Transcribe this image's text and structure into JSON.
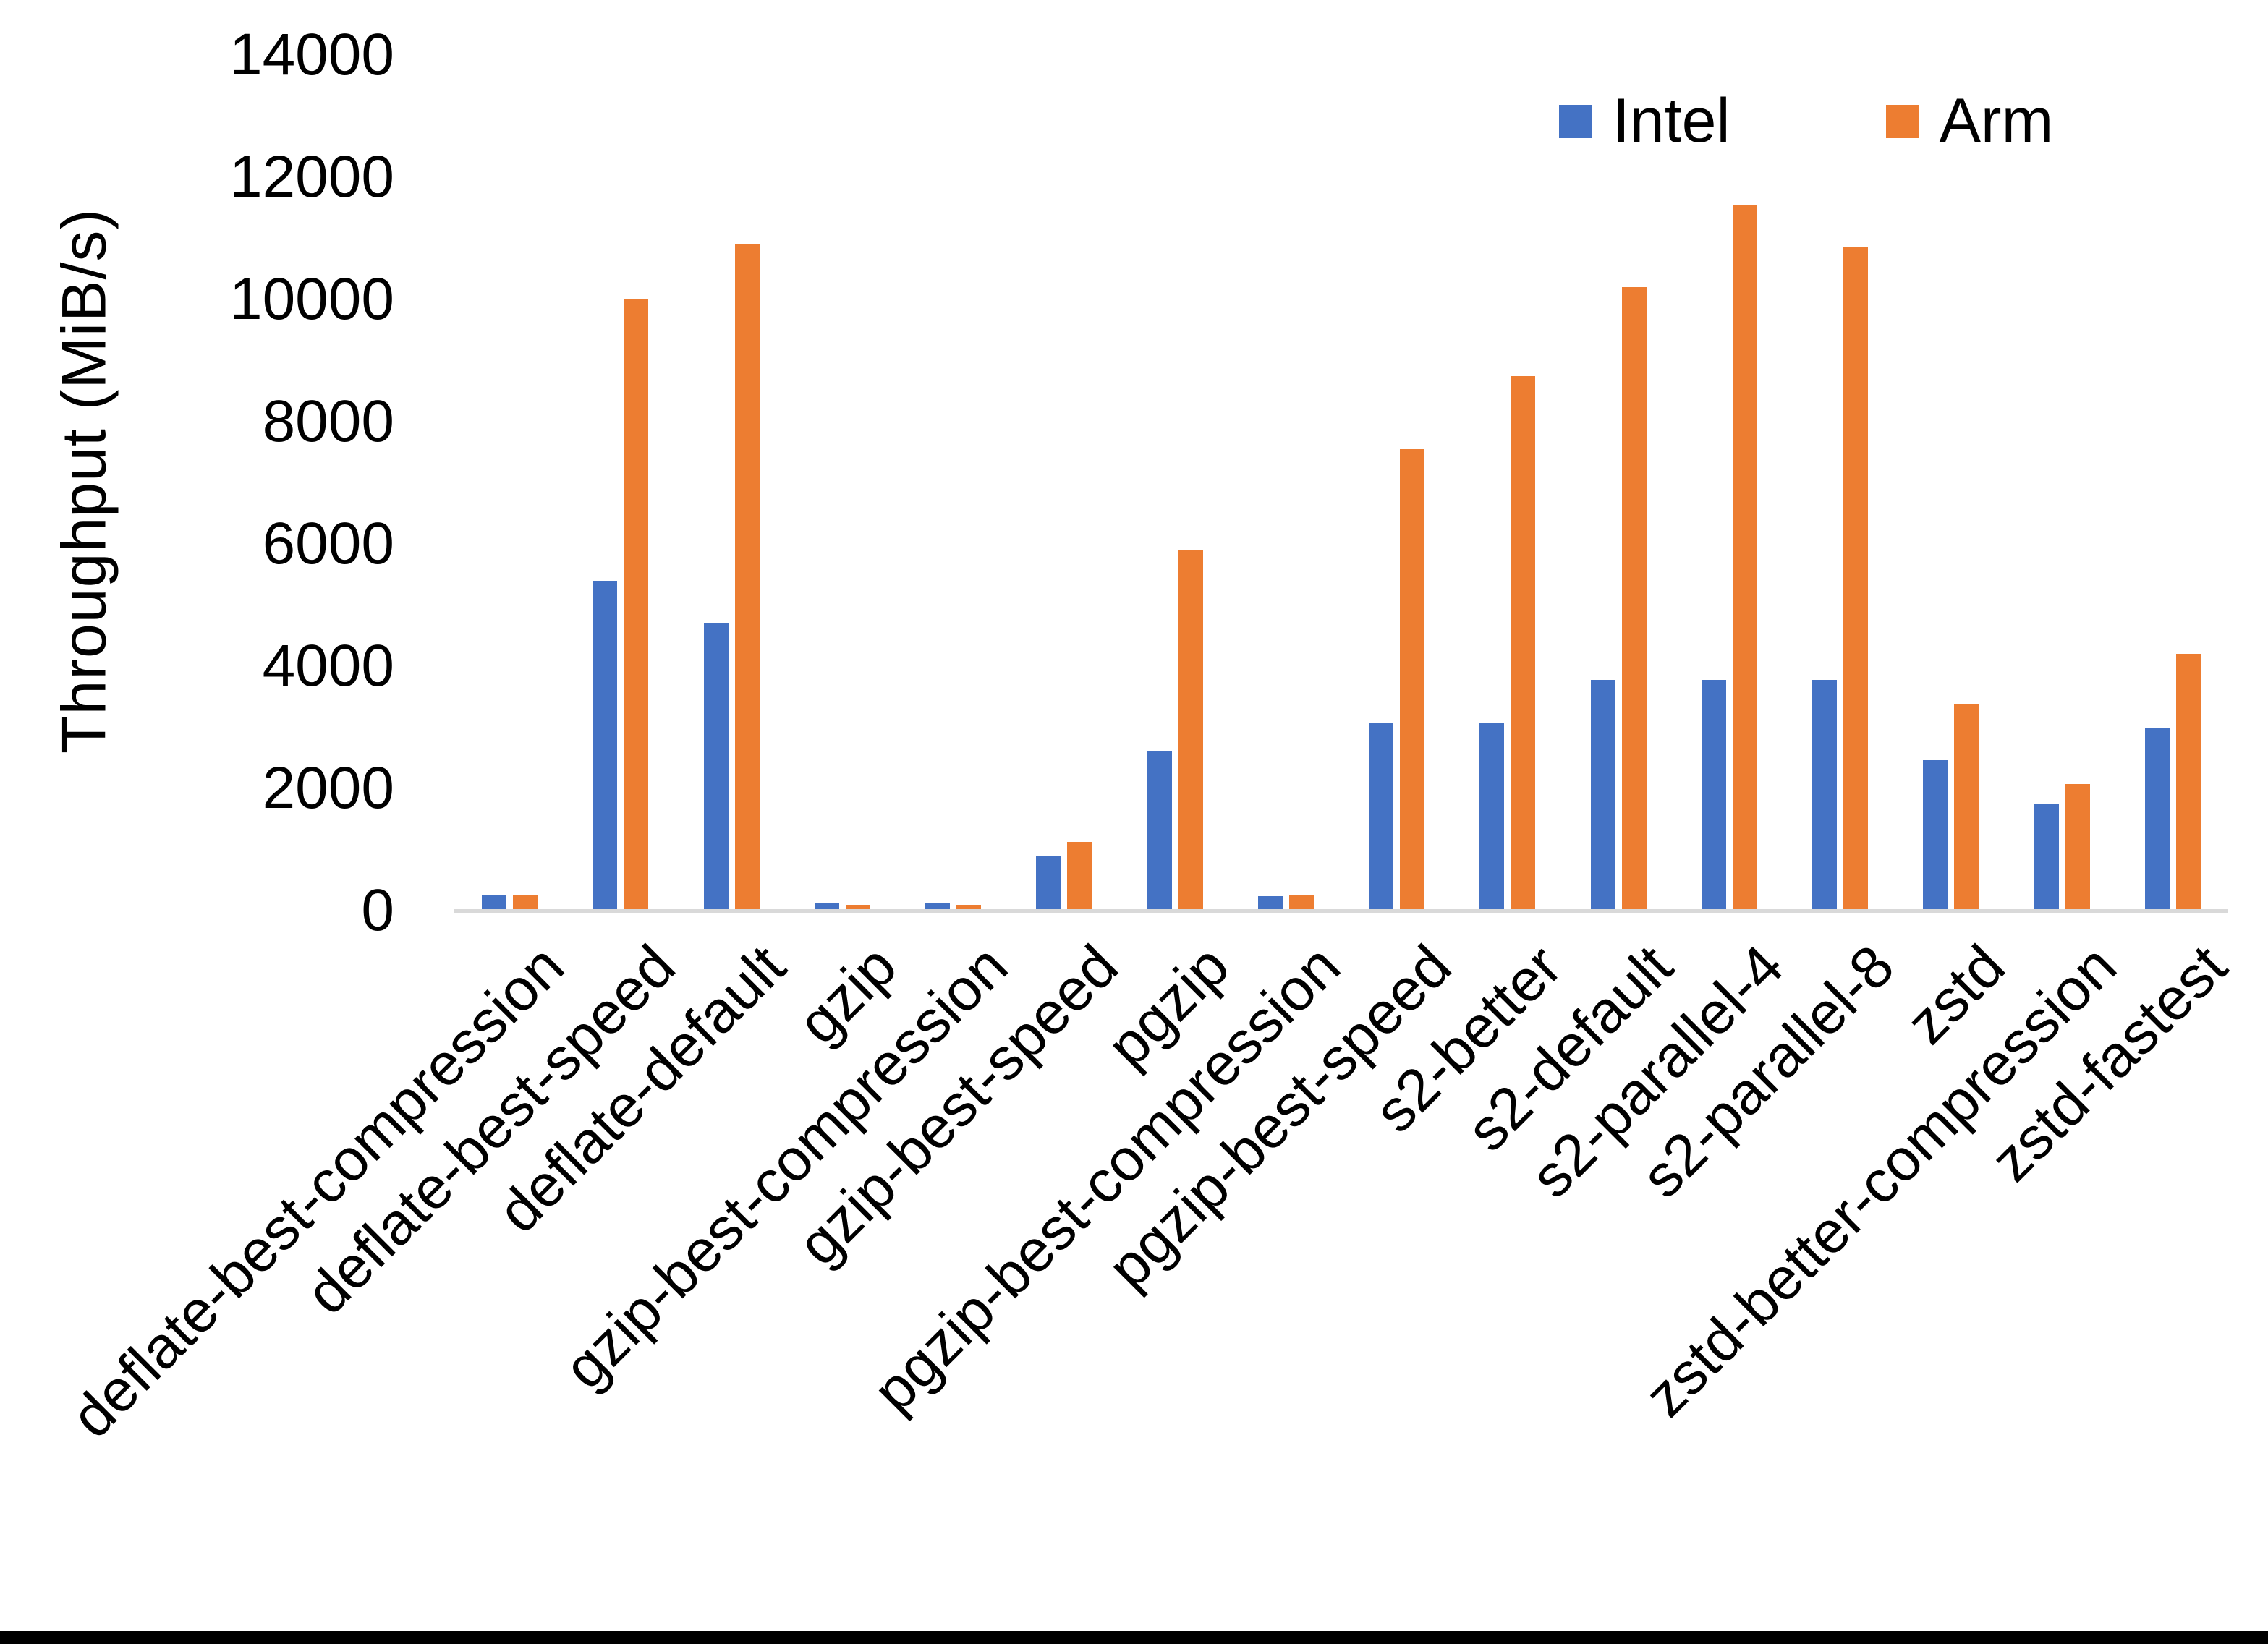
{
  "chart_data": {
    "type": "bar",
    "title": "",
    "xlabel": "",
    "ylabel": "Throughput (MiB/s)",
    "ylim": [
      0,
      14000
    ],
    "yticks": [
      0,
      2000,
      4000,
      6000,
      8000,
      10000,
      12000,
      14000
    ],
    "grid": false,
    "legend_position": "top-right",
    "categories": [
      "deflate-best-compression",
      "deflate-best-speed",
      "deflate-default",
      "gzip",
      "gzip-best-compression",
      "gzip-best-speed",
      "pgzip",
      "pgzip-best-compression",
      "pgzip-best-speed",
      "s2-better",
      "s2-default",
      "s2-parallel-4",
      "s2-parallel-8",
      "zstd",
      "zstd-better-compression",
      "zstd-fastest"
    ],
    "series": [
      {
        "name": "Intel",
        "color": "#4472C4",
        "values": [
          250,
          5400,
          4700,
          130,
          130,
          900,
          2600,
          240,
          3060,
          3060,
          3770,
          3770,
          3770,
          2460,
          1750,
          2990
        ]
      },
      {
        "name": "Arm",
        "color": "#ED7D31",
        "values": [
          245,
          10000,
          10900,
          100,
          100,
          1130,
          5900,
          250,
          7550,
          8750,
          10200,
          11550,
          10850,
          3380,
          2070,
          4200
        ]
      }
    ]
  },
  "colors": {
    "intel": "#4472C4",
    "arm": "#ED7D31",
    "axis_line": "#d9d9d9",
    "text": "#000000",
    "background": "#ffffff",
    "bottom_strip": "#000000"
  }
}
